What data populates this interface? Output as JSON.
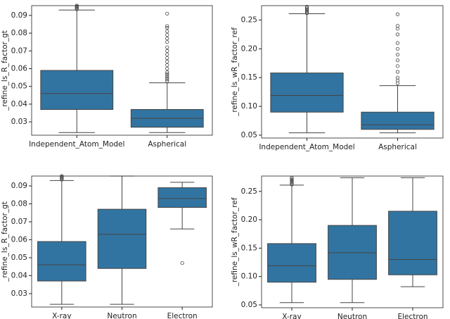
{
  "chart_data": [
    {
      "type": "box",
      "ylabel": "_refine_ls_R_factor_gt",
      "color": "#3274a1",
      "categories": [
        "Independent_Atom_Model",
        "Aspherical"
      ],
      "ylim": [
        0.0225,
        0.0955
      ],
      "yticks": [
        0.03,
        0.04,
        0.05,
        0.06,
        0.07,
        0.08,
        0.09
      ],
      "boxes": [
        {
          "whisker_low": 0.024,
          "q1": 0.037,
          "median": 0.046,
          "q3": 0.059,
          "whisker_high": 0.093,
          "outliers": [
            0.0935,
            0.094,
            0.0945,
            0.095,
            0.0955
          ]
        },
        {
          "whisker_low": 0.024,
          "q1": 0.027,
          "median": 0.032,
          "q3": 0.037,
          "whisker_high": 0.052,
          "outliers": [
            0.053,
            0.054,
            0.055,
            0.056,
            0.057,
            0.058,
            0.06,
            0.062,
            0.064,
            0.066,
            0.068,
            0.07,
            0.072,
            0.075,
            0.077,
            0.079,
            0.081,
            0.083,
            0.084,
            0.091
          ]
        }
      ]
    },
    {
      "type": "box",
      "ylabel": "_refine_ls_wR_factor_ref",
      "color": "#3274a1",
      "categories": [
        "Independent_Atom_Model",
        "Aspherical"
      ],
      "ylim": [
        0.045,
        0.275
      ],
      "yticks": [
        0.05,
        {
          "value": 0.1,
          "label": "0.10"
        },
        0.15,
        {
          "value": 0.2,
          "label": "0.20"
        },
        0.25
      ],
      "boxes": [
        {
          "whisker_low": 0.054,
          "q1": 0.09,
          "median": 0.119,
          "q3": 0.158,
          "whisker_high": 0.261,
          "outliers": [
            0.262,
            0.264,
            0.266,
            0.268,
            0.27,
            0.272,
            0.273
          ]
        },
        {
          "whisker_low": 0.054,
          "q1": 0.06,
          "median": 0.068,
          "q3": 0.09,
          "whisker_high": 0.136,
          "outliers": [
            0.14,
            0.145,
            0.15,
            0.16,
            0.17,
            0.18,
            0.19,
            0.2,
            0.21,
            0.225,
            0.235,
            0.24,
            0.26
          ]
        }
      ]
    },
    {
      "type": "box",
      "ylabel": "_refine_ls_R_factor_gt",
      "color": "#3274a1",
      "categories": [
        "X-ray",
        "Neutron",
        "Electron"
      ],
      "ylim": [
        0.0225,
        0.0955
      ],
      "yticks": [
        0.03,
        0.04,
        0.05,
        0.06,
        0.07,
        0.08,
        0.09
      ],
      "boxes": [
        {
          "whisker_low": 0.024,
          "q1": 0.037,
          "median": 0.046,
          "q3": 0.059,
          "whisker_high": 0.093,
          "outliers": [
            0.0935,
            0.094,
            0.0945,
            0.095,
            0.0955
          ]
        },
        {
          "whisker_low": 0.024,
          "q1": 0.044,
          "median": 0.063,
          "q3": 0.077,
          "whisker_high": 0.0955,
          "outliers": []
        },
        {
          "whisker_low": 0.066,
          "q1": 0.078,
          "median": 0.083,
          "q3": 0.089,
          "whisker_high": 0.092,
          "outliers": [
            0.047
          ]
        }
      ]
    },
    {
      "type": "box",
      "ylabel": "_refine_ls_wR_factor_ref",
      "color": "#3274a1",
      "categories": [
        "X-ray",
        "Neutron",
        "Electron"
      ],
      "ylim": [
        0.045,
        0.277
      ],
      "yticks": [
        0.05,
        {
          "value": 0.1,
          "label": "0.10"
        },
        0.15,
        {
          "value": 0.2,
          "label": "0.20"
        },
        0.25
      ],
      "boxes": [
        {
          "whisker_low": 0.054,
          "q1": 0.09,
          "median": 0.119,
          "q3": 0.158,
          "whisker_high": 0.261,
          "outliers": [
            0.262,
            0.264,
            0.266,
            0.268,
            0.27,
            0.272,
            0.274
          ]
        },
        {
          "whisker_low": 0.054,
          "q1": 0.095,
          "median": 0.142,
          "q3": 0.19,
          "whisker_high": 0.274,
          "outliers": []
        },
        {
          "whisker_low": 0.082,
          "q1": 0.103,
          "median": 0.13,
          "q3": 0.215,
          "whisker_high": 0.274,
          "outliers": []
        }
      ]
    }
  ]
}
